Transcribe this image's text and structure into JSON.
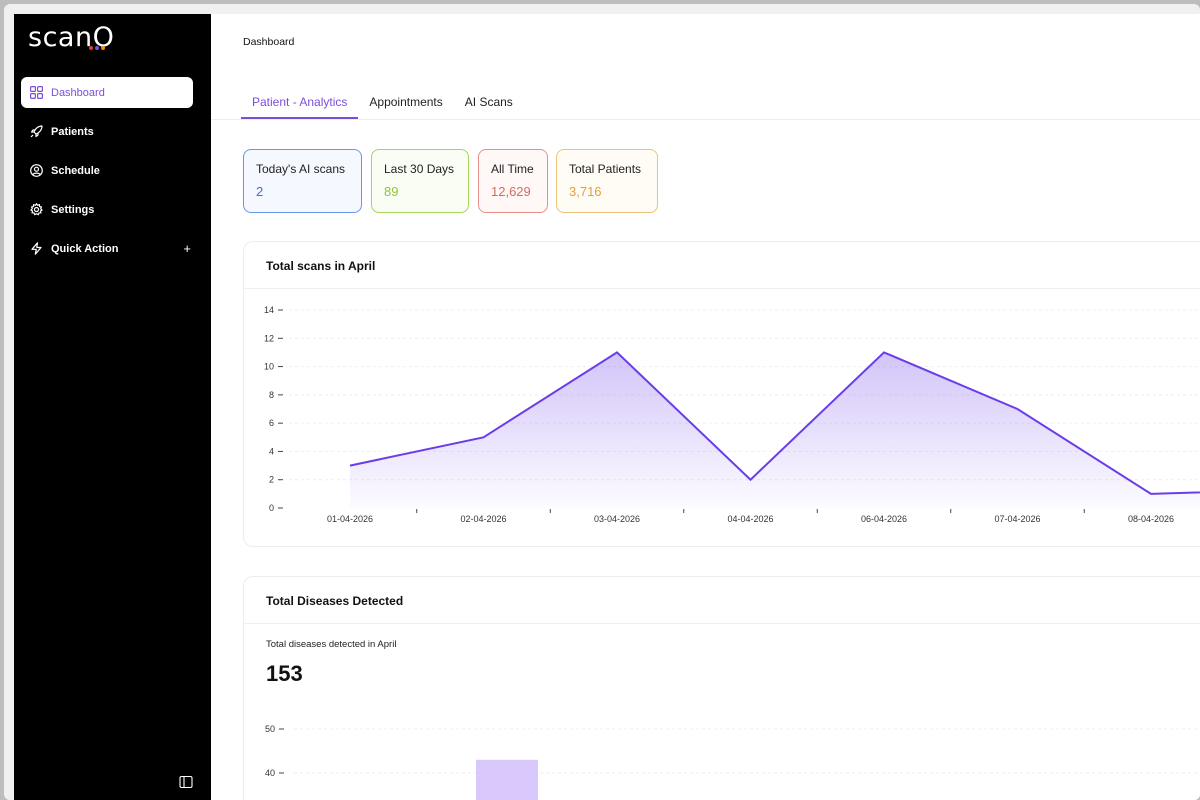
{
  "app": {
    "logo": "scanO",
    "logo_dot_colors": [
      "#e53935",
      "#7c4ddb",
      "#fb8c00"
    ]
  },
  "sidebar": {
    "items": [
      {
        "label": "Dashboard",
        "icon": "grid-icon",
        "active": true
      },
      {
        "label": "Patients",
        "icon": "rocket-icon"
      },
      {
        "label": "Schedule",
        "icon": "user-circle-icon"
      },
      {
        "label": "Settings",
        "icon": "gear-icon"
      },
      {
        "label": "Quick Action",
        "icon": "bolt-icon",
        "extra": "+"
      }
    ],
    "collapse_icon": "sidebar-toggle-icon"
  },
  "header": {
    "breadcrumb": "Dashboard"
  },
  "tabs": [
    {
      "label": "Patient - Analytics",
      "active": true
    },
    {
      "label": "Appointments"
    },
    {
      "label": "AI Scans"
    }
  ],
  "stats": [
    {
      "label": "Today's AI scans",
      "value": "2",
      "color": "#3b6fd8",
      "border": "#6b95e8",
      "bg": "#f5f8ff"
    },
    {
      "label": "Last 30 Days",
      "value": "89",
      "color": "#94c33b",
      "border": "#a8d45a",
      "bg": "#fafdf4"
    },
    {
      "label": "All Time",
      "value": "12,629",
      "color": "#d96a5e",
      "border": "#e89088",
      "bg": "#fff8f7"
    },
    {
      "label": "Total Patients",
      "value": "3,716",
      "color": "#e0a13c",
      "border": "#efc27a",
      "bg": "#fffcf6"
    }
  ],
  "scans_card": {
    "title": "Total scans in April"
  },
  "diseases_card": {
    "title": "Total Diseases Detected",
    "subtitle": "Total diseases detected in April",
    "total": "153"
  },
  "chart_data": [
    {
      "type": "area",
      "title": "Total scans in April",
      "x": [
        "01-04-2026",
        "02-04-2026",
        "03-04-2026",
        "04-04-2026",
        "06-04-2026",
        "07-04-2026",
        "08-04-2026",
        ""
      ],
      "series": [
        {
          "values": [
            3,
            5,
            11,
            2,
            11,
            7,
            1,
            1.3
          ]
        }
      ],
      "ylim": [
        0,
        14
      ],
      "yticks": [
        0,
        2,
        4,
        6,
        8,
        10,
        12,
        14
      ],
      "color": "#6a3de8",
      "grid": true
    },
    {
      "type": "bar",
      "title": "Total Diseases Detected",
      "yticks": [
        40,
        50
      ],
      "bars": [
        {
          "value": 43
        }
      ],
      "color": "#d9c8fb",
      "grid": true
    }
  ]
}
